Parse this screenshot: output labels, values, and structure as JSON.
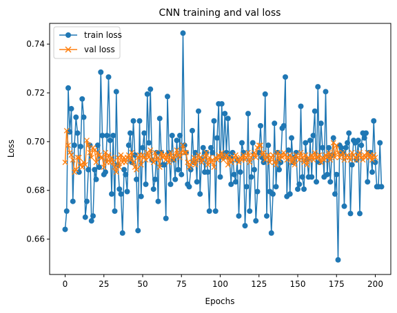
{
  "chart_data": {
    "type": "line",
    "title": "CNN training and val loss",
    "xlabel": "Epochs",
    "ylabel": "Loss",
    "xlim": [
      -10,
      210
    ],
    "ylim": [
      0.6455,
      0.7485
    ],
    "xticks": [
      0,
      25,
      50,
      75,
      100,
      125,
      150,
      175,
      200
    ],
    "yticks": [
      0.66,
      0.68,
      0.7,
      0.72,
      0.74
    ],
    "grid": false,
    "legend_position": "top-left",
    "series": [
      {
        "name": "train loss",
        "color": "#1f77b4",
        "marker": "circle",
        "values": [
          0.664,
          0.6715,
          0.722,
          0.704,
          0.7135,
          0.6755,
          0.6985,
          0.71,
          0.7035,
          0.6875,
          0.698,
          0.7175,
          0.71,
          0.669,
          0.6755,
          0.6885,
          0.6985,
          0.6675,
          0.6695,
          0.6885,
          0.6845,
          0.6985,
          0.6895,
          0.7285,
          0.7025,
          0.6865,
          0.6875,
          0.7025,
          0.7265,
          0.7005,
          0.6785,
          0.7025,
          0.6715,
          0.7205,
          0.6905,
          0.6805,
          0.6785,
          0.6625,
          0.6885,
          0.6865,
          0.6795,
          0.6985,
          0.7035,
          0.6915,
          0.7085,
          0.6945,
          0.6845,
          0.6635,
          0.7085,
          0.6775,
          0.6975,
          0.7035,
          0.6825,
          0.7195,
          0.6995,
          0.7215,
          0.6925,
          0.6805,
          0.6845,
          0.6955,
          0.6755,
          0.7095,
          0.6955,
          0.6905,
          0.6905,
          0.6685,
          0.7185,
          0.6955,
          0.6825,
          0.7025,
          0.6925,
          0.6845,
          0.7005,
          0.6885,
          0.7025,
          0.6865,
          0.7445,
          0.6985,
          0.6955,
          0.6825,
          0.6815,
          0.6885,
          0.7045,
          0.6915,
          0.6955,
          0.6835,
          0.7125,
          0.6785,
          0.6925,
          0.6975,
          0.6875,
          0.6955,
          0.6875,
          0.6715,
          0.6975,
          0.6955,
          0.7085,
          0.6715,
          0.7015,
          0.7155,
          0.6855,
          0.7155,
          0.6935,
          0.7115,
          0.6955,
          0.7095,
          0.6935,
          0.6825,
          0.6955,
          0.6865,
          0.6835,
          0.6925,
          0.6695,
          0.6875,
          0.6995,
          0.6955,
          0.6655,
          0.6815,
          0.7115,
          0.6715,
          0.6855,
          0.6995,
          0.6885,
          0.6675,
          0.6795,
          0.6955,
          0.7065,
          0.6935,
          0.6915,
          0.7195,
          0.6695,
          0.6985,
          0.6795,
          0.6625,
          0.6785,
          0.7075,
          0.6815,
          0.6955,
          0.6885,
          0.6915,
          0.7055,
          0.7065,
          0.7265,
          0.6775,
          0.6965,
          0.6785,
          0.7015,
          0.6915,
          0.6935,
          0.6955,
          0.6805,
          0.6825,
          0.7145,
          0.6855,
          0.6805,
          0.6995,
          0.6925,
          0.6855,
          0.7005,
          0.6855,
          0.7025,
          0.7125,
          0.6835,
          0.7225,
          0.6915,
          0.7075,
          0.6975,
          0.6855,
          0.7205,
          0.6865,
          0.6975,
          0.6835,
          0.6945,
          0.7015,
          0.6785,
          0.6865,
          0.6515,
          0.6985,
          0.6975,
          0.6955,
          0.6735,
          0.6975,
          0.6995,
          0.7035,
          0.6705,
          0.6905,
          0.7005,
          0.6995,
          0.6925,
          0.7005,
          0.6705,
          0.6985,
          0.7035,
          0.7015,
          0.7035,
          0.6835,
          0.6955,
          0.6955,
          0.6875,
          0.7085,
          0.6915,
          0.6815,
          0.6815,
          0.6995,
          0.6815
        ]
      },
      {
        "name": "val loss",
        "color": "#ff7f0e",
        "marker": "x",
        "values": [
          0.6915,
          0.7045,
          0.6985,
          0.6955,
          0.6945,
          0.6925,
          0.6875,
          0.6885,
          0.6935,
          0.6935,
          0.6905,
          0.6895,
          0.6915,
          0.6905,
          0.7005,
          0.6985,
          0.6955,
          0.6935,
          0.6975,
          0.6965,
          0.6915,
          0.6955,
          0.6945,
          0.6935,
          0.6935,
          0.6895,
          0.6955,
          0.6915,
          0.6945,
          0.6915,
          0.6935,
          0.6915,
          0.6895,
          0.6875,
          0.6935,
          0.6895,
          0.6945,
          0.6915,
          0.6935,
          0.6915,
          0.6935,
          0.6945,
          0.6925,
          0.6955,
          0.6915,
          0.6895,
          0.6885,
          0.6935,
          0.6945,
          0.6905,
          0.6945,
          0.6935,
          0.6925,
          0.6955,
          0.6935,
          0.6965,
          0.6925,
          0.6915,
          0.6955,
          0.6925,
          0.6935,
          0.6895,
          0.6955,
          0.6935,
          0.6945,
          0.6925,
          0.6945,
          0.6915,
          0.6955,
          0.6935,
          0.6925,
          0.6945,
          0.6965,
          0.6945,
          0.6935,
          0.6955,
          0.6985,
          0.6955,
          0.6955,
          0.6915,
          0.6895,
          0.6905,
          0.6915,
          0.6935,
          0.6905,
          0.6925,
          0.6945,
          0.6935,
          0.6915,
          0.6925,
          0.6935,
          0.6955,
          0.6905,
          0.6935,
          0.6915,
          0.6925,
          0.6895,
          0.6935,
          0.6925,
          0.6945,
          0.6935,
          0.6955,
          0.6925,
          0.6935,
          0.6945,
          0.6905,
          0.6935,
          0.6915,
          0.6925,
          0.6935,
          0.6945,
          0.6925,
          0.6915,
          0.6935,
          0.6925,
          0.6945,
          0.6925,
          0.6935,
          0.6955,
          0.6915,
          0.6935,
          0.6945,
          0.6955,
          0.6935,
          0.6975,
          0.6985,
          0.6985,
          0.6945,
          0.6955,
          0.6925,
          0.6935,
          0.6945,
          0.6915,
          0.6935,
          0.6945,
          0.6915,
          0.6905,
          0.6955,
          0.6925,
          0.6945,
          0.6935,
          0.6955,
          0.6945,
          0.6925,
          0.6935,
          0.6945,
          0.6915,
          0.6935,
          0.6905,
          0.6945,
          0.6935,
          0.6925,
          0.6955,
          0.6935,
          0.6915,
          0.6945,
          0.6905,
          0.6935,
          0.6925,
          0.6945,
          0.6925,
          0.6955,
          0.6935,
          0.6935,
          0.6945,
          0.6915,
          0.6935,
          0.6925,
          0.6945,
          0.6935,
          0.6955,
          0.6925,
          0.6945,
          0.6995,
          0.6935,
          0.6985,
          0.6955,
          0.6935,
          0.6945,
          0.6955,
          0.6925,
          0.6935,
          0.6945,
          0.6935,
          0.6925,
          0.6955,
          0.6945,
          0.6935,
          0.6925,
          0.6945,
          0.6955,
          0.6935,
          0.6925,
          0.6945,
          0.6935,
          0.6955,
          0.6935,
          0.6945,
          0.6925,
          0.6945,
          0.6935
        ]
      }
    ]
  }
}
